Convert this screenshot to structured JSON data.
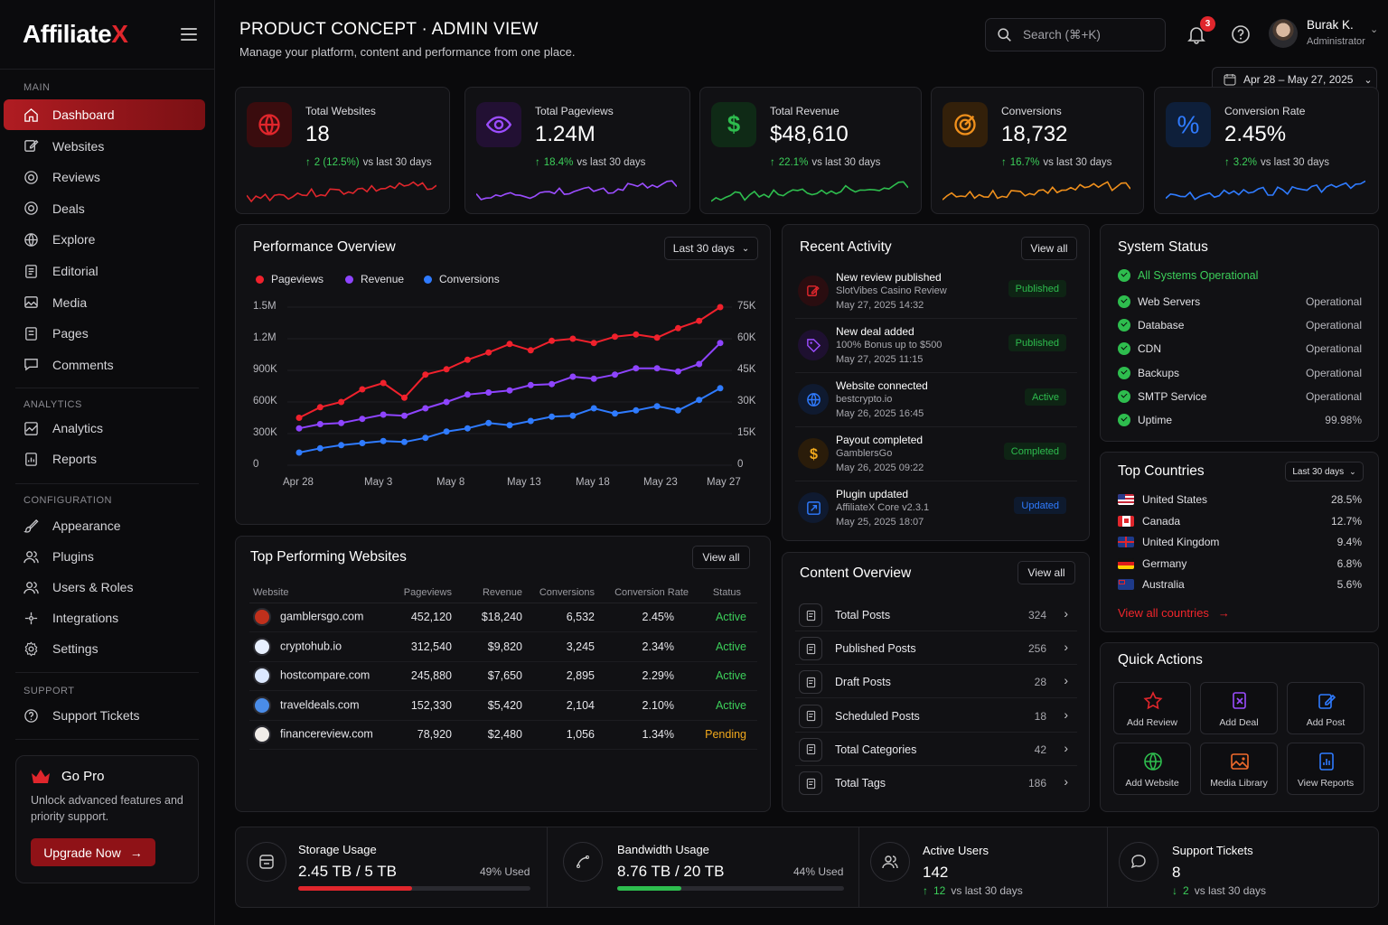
{
  "brand": {
    "name_main": "Affiliate",
    "name_x": "X"
  },
  "sidebar": {
    "section_main": "MAIN",
    "section_analytics": "ANALYTICS",
    "section_config": "CONFIGURATION",
    "section_support": "SUPPORT",
    "main_items": [
      {
        "label": "Dashboard",
        "icon": "home-icon"
      },
      {
        "label": "Websites",
        "icon": "edit-icon"
      },
      {
        "label": "Reviews",
        "icon": "chat-icon"
      },
      {
        "label": "Deals",
        "icon": "chat-icon"
      },
      {
        "label": "Explore",
        "icon": "globe-icon"
      },
      {
        "label": "Editorial",
        "icon": "document-icon"
      },
      {
        "label": "Media",
        "icon": "image-icon"
      },
      {
        "label": "Pages",
        "icon": "pages-icon"
      },
      {
        "label": "Comments",
        "icon": "comment-icon"
      }
    ],
    "analytics_items": [
      {
        "label": "Analytics",
        "icon": "chart-icon"
      },
      {
        "label": "Reports",
        "icon": "report-icon"
      }
    ],
    "config_items": [
      {
        "label": "Appearance",
        "icon": "brush-icon"
      },
      {
        "label": "Plugins",
        "icon": "users-icon"
      },
      {
        "label": "Users & Roles",
        "icon": "users-icon"
      },
      {
        "label": "Integrations",
        "icon": "integrations-icon"
      },
      {
        "label": "Settings",
        "icon": "gear-icon"
      }
    ],
    "support_items": [
      {
        "label": "Support Tickets",
        "icon": "help-icon"
      }
    ],
    "gopro": {
      "title": "Go Pro",
      "desc": "Unlock advanced features and priority support.",
      "button": "Upgrade Now"
    }
  },
  "header": {
    "title": "PRODUCT CONCEPT · ADMIN VIEW",
    "subtitle": "Manage your platform, content and performance from one place.",
    "search_placeholder": "Search (⌘+K)",
    "notif_count": "3",
    "user_name": "Burak K.",
    "user_role": "Administrator",
    "date_range": "Apr 28 – May 27, 2025"
  },
  "kpis": [
    {
      "label": "Total Websites",
      "value": "18",
      "change": "2 (12.5%)",
      "suffix": "vs last 30 days",
      "color": "#e0262c"
    },
    {
      "label": "Total Pageviews",
      "value": "1.24M",
      "change": "18.4%",
      "suffix": "vs last 30 days",
      "color": "#9b4dff"
    },
    {
      "label": "Total Revenue",
      "value": "$48,610",
      "change": "22.1%",
      "suffix": "vs last 30 days",
      "color": "#2ebd4e"
    },
    {
      "label": "Conversions",
      "value": "18,732",
      "change": "16.7%",
      "suffix": "vs last 30 days",
      "color": "#f0901c"
    },
    {
      "label": "Conversion Rate",
      "value": "2.45%",
      "change": "3.2%",
      "suffix": "vs last 30 days",
      "color": "#2f7bff"
    }
  ],
  "performance": {
    "title": "Performance Overview",
    "range": "Last 30 days",
    "legend": [
      "Pageviews",
      "Revenue",
      "Conversions"
    ]
  },
  "chart_data": {
    "type": "line",
    "x": [
      "Apr 28",
      "Apr 30",
      "May 1",
      "May 3",
      "May 4",
      "May 6",
      "May 8",
      "May 9",
      "May 11",
      "May 12",
      "May 13",
      "May 15",
      "May 16",
      "May 18",
      "May 19",
      "May 21",
      "May 22",
      "May 23",
      "May 25",
      "May 26",
      "May 27"
    ],
    "xticks": [
      "Apr 28",
      "May 3",
      "May 8",
      "May 13",
      "May 18",
      "May 23",
      "May 27"
    ],
    "yticks_left": [
      "1.5M",
      "1.2M",
      "900K",
      "600K",
      "300K",
      "0"
    ],
    "yticks_right": [
      "75K",
      "60K",
      "45K",
      "30K",
      "15K",
      "0"
    ],
    "ylim_left": [
      0,
      1500000
    ],
    "ylim_right": [
      0,
      75000
    ],
    "series": [
      {
        "name": "Pageviews",
        "color": "#f0212c",
        "values": [
          450000,
          550000,
          600000,
          720000,
          780000,
          640000,
          860000,
          910000,
          1000000,
          1070000,
          1150000,
          1090000,
          1180000,
          1200000,
          1160000,
          1220000,
          1240000,
          1210000,
          1300000,
          1370000,
          1500000
        ]
      },
      {
        "name": "Revenue",
        "color": "#8e44ff",
        "values": [
          350000,
          390000,
          400000,
          440000,
          480000,
          470000,
          540000,
          600000,
          670000,
          690000,
          710000,
          760000,
          770000,
          840000,
          820000,
          860000,
          920000,
          920000,
          890000,
          960000,
          1160000
        ]
      },
      {
        "name": "Conversions",
        "color": "#2f7bff",
        "values": [
          120000,
          160000,
          190000,
          210000,
          230000,
          220000,
          260000,
          320000,
          350000,
          400000,
          380000,
          420000,
          460000,
          470000,
          540000,
          490000,
          520000,
          560000,
          520000,
          620000,
          730000
        ]
      }
    ]
  },
  "top_websites": {
    "title": "Top Performing Websites",
    "view_all": "View all",
    "columns": [
      "Website",
      "Pageviews",
      "Revenue",
      "Conversions",
      "Conversion Rate",
      "Status"
    ],
    "rows": [
      {
        "site": "gamblersgo.com",
        "pv": "452,120",
        "rev": "$18,240",
        "conv": "6,532",
        "rate": "2.45%",
        "status": "Active",
        "favcolor": "#c0301c"
      },
      {
        "site": "cryptohub.io",
        "pv": "312,540",
        "rev": "$9,820",
        "conv": "3,245",
        "rate": "2.34%",
        "status": "Active",
        "favcolor": "#e8f0ff"
      },
      {
        "site": "hostcompare.com",
        "pv": "245,880",
        "rev": "$7,650",
        "conv": "2,895",
        "rate": "2.29%",
        "status": "Active",
        "favcolor": "#dce8ff"
      },
      {
        "site": "traveldeals.com",
        "pv": "152,330",
        "rev": "$5,420",
        "conv": "2,104",
        "rate": "2.10%",
        "status": "Active",
        "favcolor": "#4a8ce8"
      },
      {
        "site": "financereview.com",
        "pv": "78,920",
        "rev": "$2,480",
        "conv": "1,056",
        "rate": "1.34%",
        "status": "Pending",
        "favcolor": "#f0ece8"
      }
    ]
  },
  "activity": {
    "title": "Recent Activity",
    "view_all": "View all",
    "items": [
      {
        "title": "New review published",
        "sub": "SlotVibes Casino Review",
        "time": "May 27, 2025 14:32",
        "status": "Published",
        "color": "#e0262c",
        "pillcolor": "#2ebd4e"
      },
      {
        "title": "New deal added",
        "sub": "100% Bonus up to $500",
        "time": "May 27, 2025 11:15",
        "status": "Published",
        "color": "#9b4dff",
        "pillcolor": "#2ebd4e"
      },
      {
        "title": "Website connected",
        "sub": "bestcrypto.io",
        "time": "May 26, 2025 16:45",
        "status": "Active",
        "color": "#2f7bff",
        "pillcolor": "#2ebd4e"
      },
      {
        "title": "Payout completed",
        "sub": "GamblersGo",
        "time": "May 26, 2025 09:22",
        "status": "Completed",
        "color": "#f0a81c",
        "pillcolor": "#2ebd4e"
      },
      {
        "title": "Plugin updated",
        "sub": "AffiliateX Core v2.3.1",
        "time": "May 25, 2025 18:07",
        "status": "Updated",
        "color": "#2f7bff",
        "pillcolor": "#2f7bff"
      }
    ]
  },
  "content": {
    "title": "Content Overview",
    "view_all": "View all",
    "items": [
      {
        "label": "Total Posts",
        "value": "324"
      },
      {
        "label": "Published Posts",
        "value": "256"
      },
      {
        "label": "Draft Posts",
        "value": "28"
      },
      {
        "label": "Scheduled Posts",
        "value": "18"
      },
      {
        "label": "Total Categories",
        "value": "42"
      },
      {
        "label": "Total Tags",
        "value": "186"
      }
    ]
  },
  "system": {
    "title": "System Status",
    "overall": "All Systems Operational",
    "items": [
      {
        "name": "Web Servers",
        "value": "Operational"
      },
      {
        "name": "Database",
        "value": "Operational"
      },
      {
        "name": "CDN",
        "value": "Operational"
      },
      {
        "name": "Backups",
        "value": "Operational"
      },
      {
        "name": "SMTP Service",
        "value": "Operational"
      },
      {
        "name": "Uptime",
        "value": "99.98%"
      }
    ]
  },
  "countries": {
    "title": "Top Countries",
    "range": "Last 30 days",
    "items": [
      {
        "name": "United States",
        "value": "28.5%",
        "flag": "us"
      },
      {
        "name": "Canada",
        "value": "12.7%",
        "flag": "ca"
      },
      {
        "name": "United Kingdom",
        "value": "9.4%",
        "flag": "uk"
      },
      {
        "name": "Germany",
        "value": "6.8%",
        "flag": "de"
      },
      {
        "name": "Australia",
        "value": "5.6%",
        "flag": "au"
      }
    ],
    "view_all": "View all countries"
  },
  "quick": {
    "title": "Quick Actions",
    "items": [
      {
        "label": "Add Review",
        "color": "#e0262c",
        "icon": "star-icon"
      },
      {
        "label": "Add Deal",
        "color": "#9b4dff",
        "icon": "deal-icon"
      },
      {
        "label": "Add Post",
        "color": "#2f7bff",
        "icon": "edit-icon"
      },
      {
        "label": "Add Website",
        "color": "#2ebd4e",
        "icon": "globe-icon"
      },
      {
        "label": "Media Library",
        "color": "#f06a2c",
        "icon": "image-icon"
      },
      {
        "label": "View Reports",
        "color": "#2f7bff",
        "icon": "report-icon"
      }
    ]
  },
  "bottom": {
    "storage": {
      "label": "Storage Usage",
      "value": "2.45 TB / 5 TB",
      "used": "49% Used",
      "fraction": 0.49,
      "color": "#e0262c"
    },
    "bandwidth": {
      "label": "Bandwidth Usage",
      "value": "8.76 TB / 20 TB",
      "used": "44% Used",
      "fraction": 0.44,
      "color": "#2ebd4e"
    },
    "users": {
      "label": "Active Users",
      "value": "142",
      "change": "12",
      "suffix": "vs last 30 days"
    },
    "tickets": {
      "label": "Support Tickets",
      "value": "8",
      "change": "2",
      "suffix": "vs last 30 days"
    }
  }
}
